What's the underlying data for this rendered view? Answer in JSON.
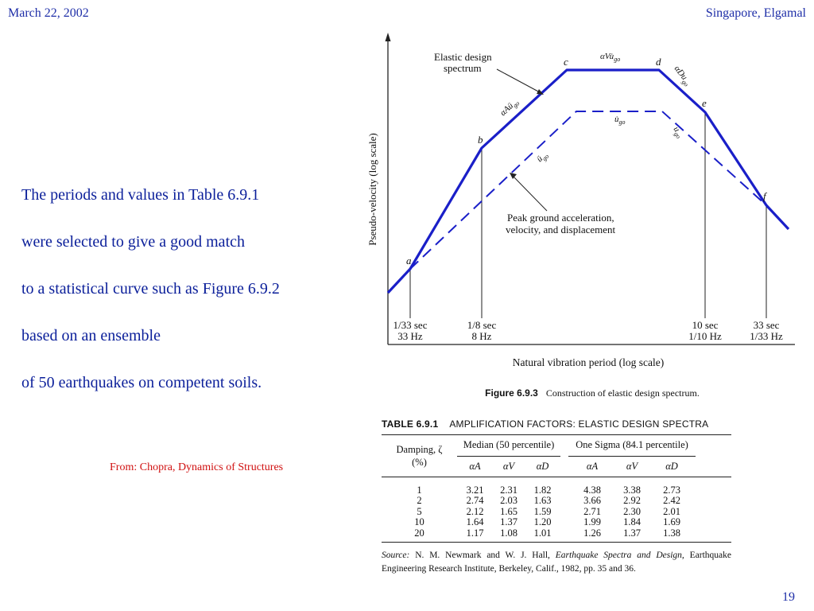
{
  "header": {
    "date": "March 22, 2002",
    "author": "Singapore, Elgamal"
  },
  "body": {
    "lines": [
      "The periods and values in Table 6.9.1",
      "were selected to give a good match",
      "to a statistical curve such as Figure 6.9.2",
      "based on an ensemble",
      "of 50 earthquakes on competent soils."
    ],
    "credit": "From: Chopra, Dynamics of Structures"
  },
  "page_number": "19",
  "figure": {
    "y_axis_label": "Pseudo-velocity (log scale)",
    "x_axis_label": "Natural vibration period (log scale)",
    "caption_number": "Figure 6.9.3",
    "caption_text": "Construction of elastic design spectrum.",
    "annotation_elastic": [
      "Elastic design",
      "spectrum"
    ],
    "annotation_ground": [
      "Peak ground acceleration,",
      "velocity, and displacement"
    ],
    "points": [
      "a",
      "b",
      "c",
      "d",
      "e",
      "f"
    ],
    "ticks": [
      {
        "top": "1/33 sec",
        "bottom": "33 Hz"
      },
      {
        "top": "1/8 sec",
        "bottom": "8 Hz"
      },
      {
        "top": "10 sec",
        "bottom": "1/10 Hz"
      },
      {
        "top": "33 sec",
        "bottom": "1/33 Hz"
      }
    ],
    "segment_labels": {
      "elastic_accel": "αAü",
      "elastic_vel": "αVu̇",
      "elastic_disp": "αDu",
      "ground_accel": "ü",
      "ground_vel": "u̇",
      "ground_disp": "u",
      "subscript": "go"
    },
    "line_color": "#1a1fc8"
  },
  "table": {
    "number": "TABLE 6.9.1",
    "title": "AMPLIFICATION FACTORS: ELASTIC DESIGN SPECTRA",
    "damping_header": "Damping, ζ",
    "damping_unit": "(%)",
    "median_header": "Median (50 percentile)",
    "sigma_header": "One Sigma (84.1 percentile)",
    "columns": [
      "αA",
      "αV",
      "αD",
      "αA",
      "αV",
      "αD"
    ],
    "rows": [
      {
        "damping": "1",
        "values": [
          "3.21",
          "2.31",
          "1.82",
          "4.38",
          "3.38",
          "2.73"
        ]
      },
      {
        "damping": "2",
        "values": [
          "2.74",
          "2.03",
          "1.63",
          "3.66",
          "2.92",
          "2.42"
        ]
      },
      {
        "damping": "5",
        "values": [
          "2.12",
          "1.65",
          "1.59",
          "2.71",
          "2.30",
          "2.01"
        ]
      },
      {
        "damping": "10",
        "values": [
          "1.64",
          "1.37",
          "1.20",
          "1.99",
          "1.84",
          "1.69"
        ]
      },
      {
        "damping": "20",
        "values": [
          "1.17",
          "1.08",
          "1.01",
          "1.26",
          "1.37",
          "1.38"
        ]
      }
    ],
    "source_label": "Source:",
    "source_authors": "N. M. Newmark and W. J. Hall,",
    "source_title": "Earthquake Spectra and Design,",
    "source_rest": "Earthquake Engineering Research Institute, Berkeley, Calif., 1982, pp. 35 and 36."
  }
}
